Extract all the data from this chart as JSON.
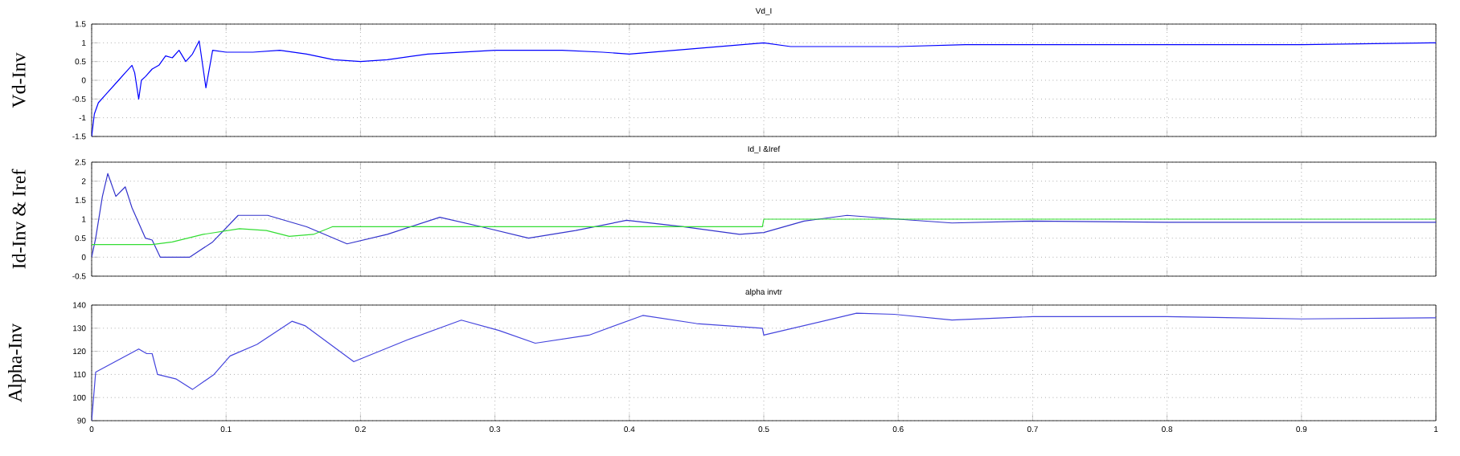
{
  "chart_data": [
    {
      "type": "line",
      "title": "Vd_I",
      "ylabel": "Vd-Inv",
      "xlim": [
        0,
        1
      ],
      "ylim": [
        -1.5,
        1.5
      ],
      "xticks": [
        0,
        0.1,
        0.2,
        0.3,
        0.4,
        0.5,
        0.6,
        0.7,
        0.8,
        0.9,
        1
      ],
      "yticks": [
        -1.5,
        -1,
        -0.5,
        0,
        0.5,
        1,
        1.5
      ],
      "grid": true,
      "tick_labels": "y",
      "series": [
        {
          "color": "#0000ff",
          "x": [
            0,
            0.002,
            0.005,
            0.01,
            0.015,
            0.02,
            0.025,
            0.03,
            0.032,
            0.035,
            0.037,
            0.04,
            0.045,
            0.05,
            0.055,
            0.06,
            0.065,
            0.07,
            0.075,
            0.08,
            0.085,
            0.09,
            0.1,
            0.12,
            0.14,
            0.16,
            0.18,
            0.2,
            0.22,
            0.25,
            0.3,
            0.35,
            0.38,
            0.4,
            0.45,
            0.5,
            0.52,
            0.55,
            0.6,
            0.65,
            0.7,
            0.8,
            0.9,
            1
          ],
          "values": [
            -1.5,
            -0.9,
            -0.6,
            -0.4,
            -0.2,
            0,
            0.2,
            0.4,
            0.2,
            -0.5,
            0,
            0.1,
            0.3,
            0.4,
            0.65,
            0.6,
            0.8,
            0.5,
            0.7,
            1.05,
            -0.2,
            0.8,
            0.75,
            0.75,
            0.8,
            0.7,
            0.55,
            0.5,
            0.55,
            0.7,
            0.8,
            0.8,
            0.75,
            0.7,
            0.85,
            1,
            0.9,
            0.9,
            0.9,
            0.95,
            0.95,
            0.95,
            0.95,
            1
          ]
        }
      ]
    },
    {
      "type": "line",
      "title": "Id_I &Iref",
      "ylabel": "Id-Inv & Iref",
      "xlim": [
        0,
        1
      ],
      "ylim": [
        -0.5,
        2.5
      ],
      "xticks": [
        0,
        0.1,
        0.2,
        0.3,
        0.4,
        0.5,
        0.6,
        0.7,
        0.8,
        0.9,
        1
      ],
      "yticks": [
        -0.5,
        0,
        0.5,
        1,
        1.5,
        2,
        2.5
      ],
      "grid": true,
      "tick_labels": "y",
      "series": [
        {
          "color": "#3333cc",
          "x": [
            0,
            0.003,
            0.008,
            0.012,
            0.018,
            0.025,
            0.03,
            0.04,
            0.045,
            0.051,
            0.073,
            0.09,
            0.109,
            0.131,
            0.16,
            0.19,
            0.22,
            0.259,
            0.29,
            0.325,
            0.36,
            0.398,
            0.44,
            0.482,
            0.5,
            0.53,
            0.562,
            0.6,
            0.64,
            0.7,
            0.8,
            0.9,
            1
          ],
          "values": [
            0,
            0.5,
            1.6,
            2.2,
            1.6,
            1.85,
            1.3,
            0.5,
            0.45,
            0,
            0,
            0.4,
            1.1,
            1.1,
            0.8,
            0.35,
            0.6,
            1.05,
            0.8,
            0.5,
            0.7,
            0.97,
            0.8,
            0.6,
            0.65,
            0.95,
            1.1,
            1,
            0.9,
            0.95,
            0.92,
            0.92,
            0.92
          ]
        },
        {
          "color": "#33dd33",
          "x": [
            0,
            0.045,
            0.06,
            0.083,
            0.11,
            0.13,
            0.147,
            0.165,
            0.179,
            0.2,
            0.3,
            0.4,
            0.499,
            0.5,
            0.6,
            0.7,
            0.8,
            0.9,
            1
          ],
          "values": [
            0.33,
            0.33,
            0.4,
            0.6,
            0.75,
            0.7,
            0.55,
            0.6,
            0.8,
            0.8,
            0.8,
            0.8,
            0.8,
            1,
            1,
            1,
            1,
            1,
            1
          ]
        }
      ]
    },
    {
      "type": "line",
      "title": "alpha invtr",
      "ylabel": "Alpha-Inv",
      "xlim": [
        0,
        1
      ],
      "ylim": [
        90,
        140
      ],
      "xticks": [
        0,
        0.1,
        0.2,
        0.3,
        0.4,
        0.5,
        0.6,
        0.7,
        0.8,
        0.9,
        1
      ],
      "yticks": [
        90,
        100,
        110,
        120,
        130,
        140
      ],
      "grid": true,
      "series": [
        {
          "color": "#4444dd",
          "x": [
            0,
            0.003,
            0.035,
            0.041,
            0.045,
            0.049,
            0.063,
            0.075,
            0.091,
            0.103,
            0.123,
            0.149,
            0.159,
            0.195,
            0.235,
            0.275,
            0.303,
            0.33,
            0.37,
            0.41,
            0.45,
            0.499,
            0.5,
            0.569,
            0.597,
            0.64,
            0.7,
            0.8,
            0.9,
            1
          ],
          "values": [
            90,
            111,
            121,
            119,
            119,
            110,
            108,
            103.5,
            110,
            118,
            123,
            133,
            131,
            115.5,
            125,
            133.5,
            129,
            123.5,
            127,
            135.5,
            132,
            130,
            127,
            136.5,
            136,
            133.5,
            135,
            135,
            134,
            134.5
          ]
        }
      ]
    }
  ]
}
